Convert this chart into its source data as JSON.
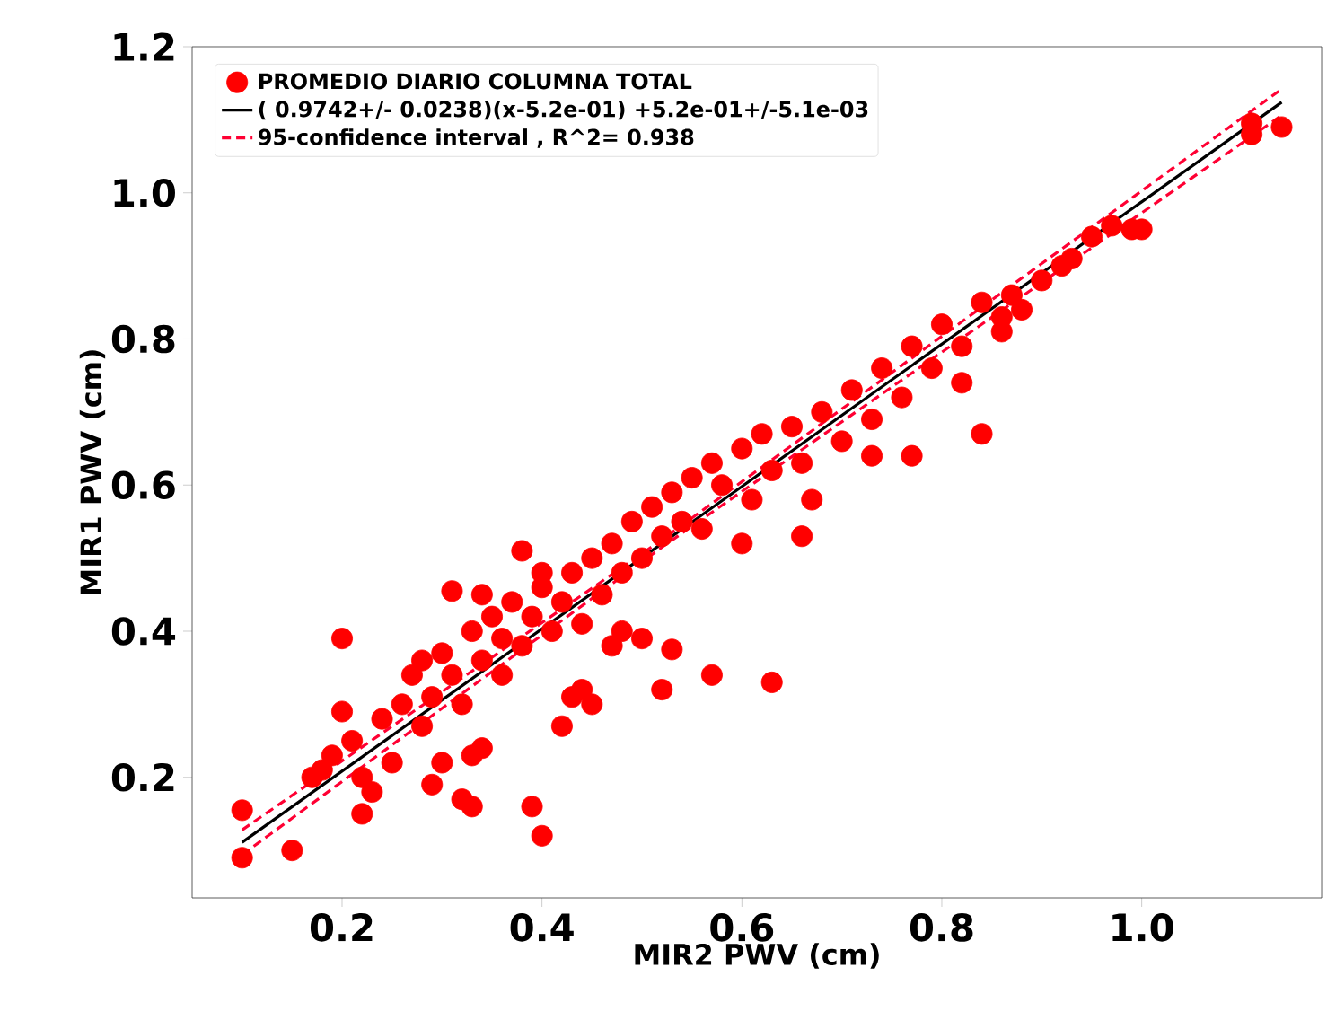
{
  "chart_data": {
    "type": "scatter",
    "xlabel": "MIR2 PWV (cm)",
    "ylabel": "MIR1 PWV (cm)",
    "xlim": [
      0.05,
      1.18
    ],
    "ylim": [
      0.035,
      1.2
    ],
    "xticks": [
      {
        "value": 0.2,
        "label": "0.2"
      },
      {
        "value": 0.4,
        "label": "0.4"
      },
      {
        "value": 0.6,
        "label": "0.6"
      },
      {
        "value": 0.8,
        "label": "0.8"
      },
      {
        "value": 1.0,
        "label": "1.0"
      }
    ],
    "yticks": [
      {
        "value": 0.2,
        "label": "0.2"
      },
      {
        "value": 0.4,
        "label": "0.4"
      },
      {
        "value": 0.6,
        "label": "0.6"
      },
      {
        "value": 0.8,
        "label": "0.8"
      },
      {
        "value": 1.0,
        "label": "1.0"
      },
      {
        "value": 1.2,
        "label": "1.2"
      }
    ],
    "legend": "top left",
    "grid": false,
    "series": [
      {
        "name": "PROMEDIO DIARIO COLUMNA TOTAL",
        "marker": "circle",
        "color": "#ff0000",
        "x": [
          0.1,
          0.1,
          0.15,
          0.2,
          0.2,
          0.22,
          0.29,
          0.3,
          0.32,
          0.33,
          0.33,
          0.34,
          0.39,
          0.4,
          0.42,
          0.44,
          0.45,
          0.43,
          0.52,
          0.57,
          0.63,
          0.47,
          0.53,
          0.48,
          0.5,
          0.31,
          0.34,
          0.38,
          0.4,
          0.17,
          0.18,
          0.19,
          0.21,
          0.22,
          0.23,
          0.24,
          0.25,
          0.26,
          0.27,
          0.28,
          0.28,
          0.29,
          0.3,
          0.31,
          0.32,
          0.33,
          0.34,
          0.35,
          0.36,
          0.36,
          0.37,
          0.38,
          0.39,
          0.4,
          0.41,
          0.42,
          0.43,
          0.44,
          0.45,
          0.46,
          0.47,
          0.48,
          0.49,
          0.5,
          0.51,
          0.52,
          0.53,
          0.54,
          0.55,
          0.56,
          0.57,
          0.58,
          0.6,
          0.61,
          0.62,
          0.63,
          0.65,
          0.66,
          0.68,
          0.7,
          0.71,
          0.73,
          0.74,
          0.76,
          0.77,
          0.79,
          0.8,
          0.82,
          0.84,
          0.86,
          0.87,
          0.9,
          0.92,
          0.95,
          0.97,
          1.0,
          0.66,
          0.84,
          0.77,
          0.73,
          0.82,
          0.86,
          0.88,
          0.93,
          0.99,
          0.6,
          0.67,
          1.11,
          1.14,
          1.11
        ],
        "values": [
          0.155,
          0.09,
          0.1,
          0.39,
          0.29,
          0.15,
          0.19,
          0.22,
          0.17,
          0.16,
          0.23,
          0.24,
          0.16,
          0.12,
          0.27,
          0.32,
          0.3,
          0.31,
          0.32,
          0.34,
          0.33,
          0.38,
          0.375,
          0.4,
          0.39,
          0.455,
          0.45,
          0.51,
          0.48,
          0.2,
          0.21,
          0.23,
          0.25,
          0.2,
          0.18,
          0.28,
          0.22,
          0.3,
          0.34,
          0.27,
          0.36,
          0.31,
          0.37,
          0.34,
          0.3,
          0.4,
          0.36,
          0.42,
          0.34,
          0.39,
          0.44,
          0.38,
          0.42,
          0.46,
          0.4,
          0.44,
          0.48,
          0.41,
          0.5,
          0.45,
          0.52,
          0.48,
          0.55,
          0.5,
          0.57,
          0.53,
          0.59,
          0.55,
          0.61,
          0.54,
          0.63,
          0.6,
          0.65,
          0.58,
          0.67,
          0.62,
          0.68,
          0.63,
          0.7,
          0.66,
          0.73,
          0.69,
          0.76,
          0.72,
          0.79,
          0.76,
          0.82,
          0.79,
          0.85,
          0.83,
          0.86,
          0.88,
          0.9,
          0.94,
          0.955,
          0.95,
          0.53,
          0.67,
          0.64,
          0.64,
          0.74,
          0.81,
          0.84,
          0.91,
          0.95,
          0.52,
          0.58,
          1.08,
          1.09,
          1.095
        ]
      },
      {
        "name": "( 0.9742+/- 0.0238)(x-5.2e-01) +5.2e-01+/-5.1e-03",
        "type": "line",
        "marker": "none",
        "line_style": "solid",
        "color": "#000000",
        "x": [
          0.1,
          1.14
        ],
        "values": [
          0.111,
          1.124
        ]
      },
      {
        "name": "95-confidence interval , R^2= 0.938",
        "type": "line",
        "marker": "none",
        "line_style": "dashed",
        "color": "#ff0033",
        "x": [
          0.1,
          0.52,
          1.14
        ],
        "values": [
          0.128,
          0.525,
          1.142
        ]
      },
      {
        "type": "line",
        "marker": "none",
        "line_style": "dashed",
        "color": "#ff0033",
        "x": [
          0.1,
          0.52,
          1.14
        ],
        "values": [
          0.094,
          0.515,
          1.106
        ]
      }
    ]
  }
}
